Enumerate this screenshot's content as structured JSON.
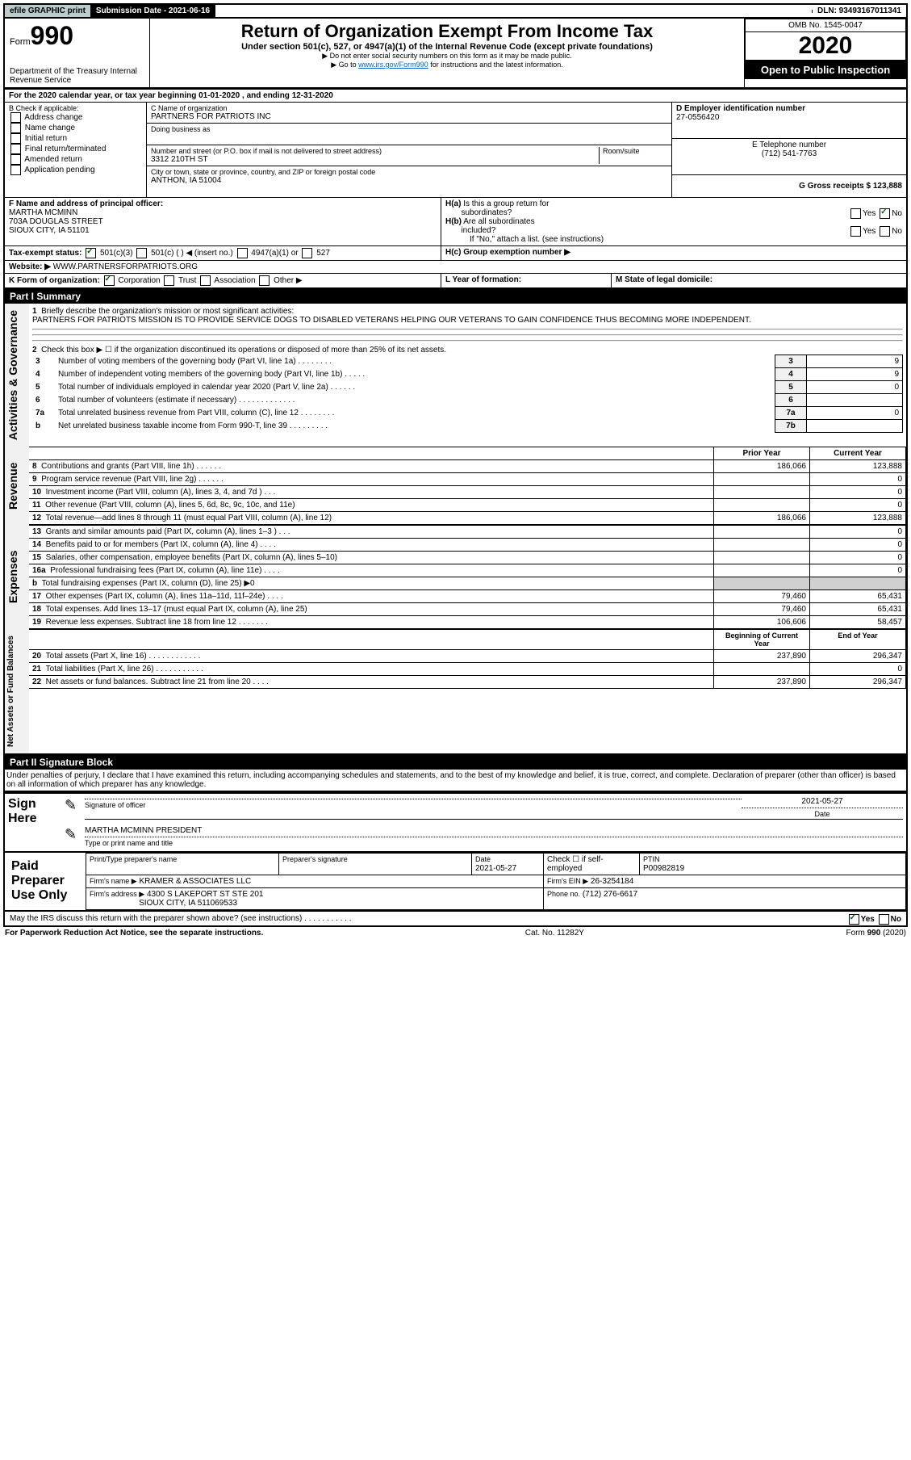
{
  "header": {
    "efile_label": "efile GRAPHIC print",
    "submission_label": "Submission Date - 2021-06-16",
    "dln_label": "DLN: 93493167011341",
    "form_prefix": "Form",
    "form_number": "990",
    "dept": "Department of the Treasury\nInternal Revenue Service",
    "title": "Return of Organization Exempt From Income Tax",
    "subtitle": "Under section 501(c), 527, or 4947(a)(1) of the Internal Revenue Code (except private foundations)",
    "note1": "▶ Do not enter social security numbers on this form as it may be made public.",
    "note2_prefix": "▶ Go to ",
    "note2_link": "www.irs.gov/Form990",
    "note2_suffix": " for instructions and the latest information.",
    "omb": "OMB No. 1545-0047",
    "year": "2020",
    "open_public": "Open to Public Inspection"
  },
  "section_a": {
    "tax_year": "For the 2020 calendar year, or tax year beginning 01-01-2020   , and ending 12-31-2020",
    "b_label": "B Check if applicable:",
    "b_opts": [
      "Address change",
      "Name change",
      "Initial return",
      "Final return/terminated",
      "Amended return",
      "Application pending"
    ],
    "c_label": "C Name of organization",
    "c_name": "PARTNERS FOR PATRIOTS INC",
    "dba_label": "Doing business as",
    "addr_label": "Number and street (or P.O. box if mail is not delivered to street address)",
    "room_label": "Room/suite",
    "addr": "3312 210TH ST",
    "city_label": "City or town, state or province, country, and ZIP or foreign postal code",
    "city": "ANTHON, IA  51004",
    "d_label": "D Employer identification number",
    "ein": "27-0556420",
    "e_label": "E Telephone number",
    "phone": "(712) 541-7763",
    "g_label": "G Gross receipts $ 123,888",
    "f_label": "F  Name and address of principal officer:",
    "f_name": "MARTHA MCMINN",
    "f_addr1": "703A DOUGLAS STREET",
    "f_addr2": "SIOUX CITY, IA  51101",
    "ha_label": "H(a)  Is this a group return for subordinates?",
    "hb_label": "H(b)  Are all subordinates included?",
    "hb_note": "If \"No,\" attach a list. (see instructions)",
    "hc_label": "H(c)  Group exemption number ▶",
    "yes": "Yes",
    "no": "No",
    "i_label": "Tax-exempt status:",
    "i_501c3": "501(c)(3)",
    "i_501c": "501(c) (  ) ◀ (insert no.)",
    "i_4947": "4947(a)(1) or",
    "i_527": "527",
    "j_label": "Website: ▶",
    "j_value": "WWW.PARTNERSFORPATRIOTS.ORG",
    "k_label": "K Form of organization:",
    "k_opts": [
      "Corporation",
      "Trust",
      "Association",
      "Other ▶"
    ],
    "l_label": "L Year of formation:",
    "m_label": "M State of legal domicile:"
  },
  "part1": {
    "header": "Part I      Summary",
    "vert1": "Activities & Governance",
    "vert2": "Revenue",
    "vert3": "Expenses",
    "vert4": "Net Assets or Fund Balances",
    "line1": "Briefly describe the organization's mission or most significant activities:",
    "mission": "PARTNERS FOR PATRIOTS MISSION IS TO PROVIDE SERVICE DOGS TO DISABLED VETERANS HELPING OUR VETERANS TO GAIN CONFIDENCE THUS BECOMING MORE INDEPENDENT.",
    "line2": "Check this box ▶ ☐  if the organization discontinued its operations or disposed of more than 25% of its net assets.",
    "rows_ag": [
      {
        "n": "3",
        "t": "Number of voting members of the governing body (Part VI, line 1a)  .    .    .    .    .    .    .    .",
        "box": "3",
        "v": "9"
      },
      {
        "n": "4",
        "t": "Number of independent voting members of the governing body (Part VI, line 1b)  .    .    .    .    .",
        "box": "4",
        "v": "9"
      },
      {
        "n": "5",
        "t": "Total number of individuals employed in calendar year 2020 (Part V, line 2a)  .    .    .    .    .    .",
        "box": "5",
        "v": "0"
      },
      {
        "n": "6",
        "t": "Total number of volunteers (estimate if necessary)    .    .    .    .    .    .    .    .    .    .    .    .    .",
        "box": "6",
        "v": ""
      },
      {
        "n": "7a",
        "t": "Total unrelated business revenue from Part VIII, column (C), line 12  .    .    .    .    .    .    .    .",
        "box": "7a",
        "v": "0"
      },
      {
        "n": "b",
        "t": "Net unrelated business taxable income from Form 990-T, line 39   .    .    .    .    .    .    .    .    .",
        "box": "7b",
        "v": ""
      }
    ],
    "prior_year": "Prior Year",
    "current_year": "Current Year",
    "rows_rev": [
      {
        "n": "8",
        "t": "Contributions and grants (Part VIII, line 1h)   .    .    .    .    .    .",
        "py": "186,066",
        "cy": "123,888"
      },
      {
        "n": "9",
        "t": "Program service revenue (Part VIII, line 2g)   .    .    .    .    .    .",
        "py": "",
        "cy": "0"
      },
      {
        "n": "10",
        "t": "Investment income (Part VIII, column (A), lines 3, 4, and 7d )   .    .    .",
        "py": "",
        "cy": "0"
      },
      {
        "n": "11",
        "t": "Other revenue (Part VIII, column (A), lines 5, 6d, 8c, 9c, 10c, and 11e)",
        "py": "",
        "cy": "0"
      },
      {
        "n": "12",
        "t": "Total revenue—add lines 8 through 11 (must equal Part VIII, column (A), line 12)",
        "py": "186,066",
        "cy": "123,888"
      }
    ],
    "rows_exp": [
      {
        "n": "13",
        "t": "Grants and similar amounts paid (Part IX, column (A), lines 1–3 )  .    .    .",
        "py": "",
        "cy": "0"
      },
      {
        "n": "14",
        "t": "Benefits paid to or for members (Part IX, column (A), line 4)  .    .    .    .",
        "py": "",
        "cy": "0"
      },
      {
        "n": "15",
        "t": "Salaries, other compensation, employee benefits (Part IX, column (A), lines 5–10)",
        "py": "",
        "cy": "0"
      },
      {
        "n": "16a",
        "t": "Professional fundraising fees (Part IX, column (A), line 11e)  .    .    .    .",
        "py": "",
        "cy": "0"
      },
      {
        "n": "b",
        "t": "Total fundraising expenses (Part IX, column (D), line 25) ▶0",
        "py": "shaded",
        "cy": "shaded"
      },
      {
        "n": "17",
        "t": "Other expenses (Part IX, column (A), lines 11a–11d, 11f–24e)  .    .    .    .",
        "py": "79,460",
        "cy": "65,431"
      },
      {
        "n": "18",
        "t": "Total expenses. Add lines 13–17 (must equal Part IX, column (A), line 25)",
        "py": "79,460",
        "cy": "65,431"
      },
      {
        "n": "19",
        "t": "Revenue less expenses. Subtract line 18 from line 12 .    .    .    .    .    .    .",
        "py": "106,606",
        "cy": "58,457"
      }
    ],
    "boy": "Beginning of Current Year",
    "eoy": "End of Year",
    "rows_na": [
      {
        "n": "20",
        "t": "Total assets (Part X, line 16)  .    .    .    .    .    .    .    .    .    .    .    .",
        "py": "237,890",
        "cy": "296,347"
      },
      {
        "n": "21",
        "t": "Total liabilities (Part X, line 26)  .    .    .    .    .    .    .    .    .    .    .",
        "py": "",
        "cy": "0"
      },
      {
        "n": "22",
        "t": "Net assets or fund balances. Subtract line 21 from line 20  .    .    .    .",
        "py": "237,890",
        "cy": "296,347"
      }
    ]
  },
  "part2": {
    "header": "Part II      Signature Block",
    "penalty": "Under penalties of perjury, I declare that I have examined this return, including accompanying schedules and statements, and to the best of my knowledge and belief, it is true, correct, and complete. Declaration of preparer (other than officer) is based on all information of which preparer has any knowledge.",
    "sign_here": "Sign Here",
    "sig_officer": "Signature of officer",
    "sig_date": "2021-05-27",
    "date_label": "Date",
    "sig_name": "MARTHA MCMINN  PRESIDENT",
    "sig_name_label": "Type or print name and title",
    "paid_prep": "Paid Preparer Use Only",
    "prep_name_label": "Print/Type preparer's name",
    "prep_sig_label": "Preparer's signature",
    "prep_date": "2021-05-27",
    "check_self": "Check ☐ if self-employed",
    "ptin_label": "PTIN",
    "ptin": "P00982819",
    "firm_name_label": "Firm's name    ▶",
    "firm_name": "KRAMER & ASSOCIATES LLC",
    "firm_ein_label": "Firm's EIN ▶",
    "firm_ein": "26-3254184",
    "firm_addr_label": "Firm's address ▶",
    "firm_addr1": "4300 S LAKEPORT ST STE 201",
    "firm_addr2": "SIOUX CITY, IA  511069533",
    "firm_phone_label": "Phone no.",
    "firm_phone": "(712) 276-6617",
    "discuss": "May the IRS discuss this return with the preparer shown above? (see instructions)   .    .    .    .    .    .    .    .    .    .    .",
    "paperwork": "For Paperwork Reduction Act Notice, see the separate instructions.",
    "cat": "Cat. No. 11282Y",
    "form_footer": "Form 990 (2020)"
  }
}
